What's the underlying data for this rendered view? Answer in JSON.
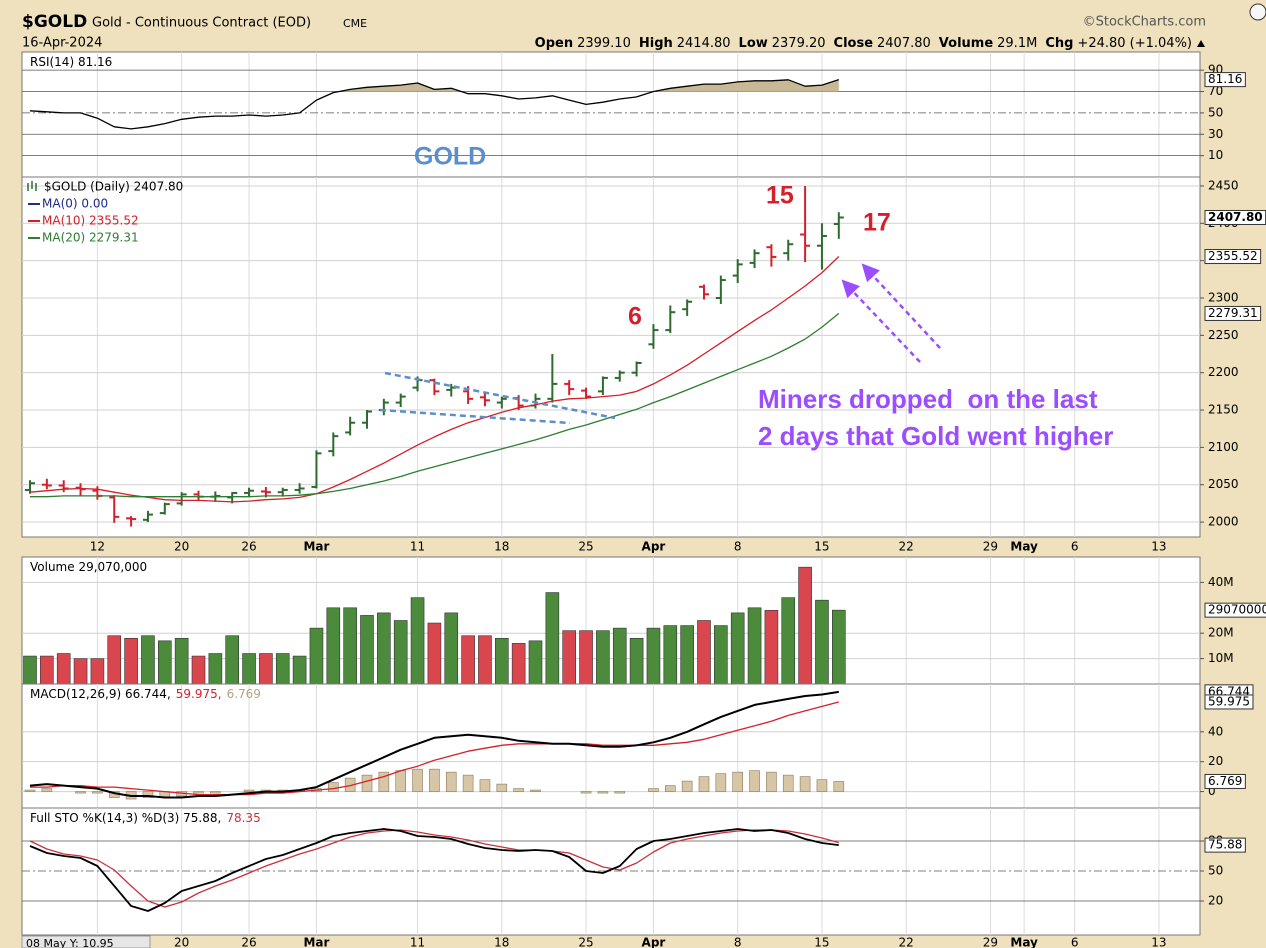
{
  "header": {
    "symbol": "$GOLD",
    "name": "Gold - Continuous Contract (EOD)",
    "exchange": "CME",
    "source": "©StockCharts.com",
    "date": "16-Apr-2024",
    "quote": [
      {
        "label": "Open",
        "value": "2399.10"
      },
      {
        "label": "High",
        "value": "2414.80"
      },
      {
        "label": "Low",
        "value": "2379.20"
      },
      {
        "label": "Close",
        "value": "2407.80"
      },
      {
        "label": "Volume",
        "value": "29.1M"
      },
      {
        "label": "Chg",
        "value": "+24.80 (+1.04%)"
      }
    ],
    "cursor_readout": "08 May Y: 10.95"
  },
  "chart_data": [
    {
      "type": "line",
      "series": [
        {
          "name": "RSI(14) 81.16",
          "color": "#000000",
          "fill": "#c9b896",
          "last_label": "81.16",
          "values": [
            52,
            51,
            50,
            50,
            45,
            37,
            35,
            37,
            40,
            44,
            46,
            47,
            47,
            48,
            47,
            48,
            50,
            62,
            69,
            72,
            74,
            75,
            76,
            78,
            72,
            73,
            68,
            68,
            66,
            63,
            64,
            66,
            62,
            58,
            60,
            63,
            65,
            70,
            73,
            75,
            77,
            77,
            79,
            80,
            80,
            81,
            75,
            76,
            81.16,
            null,
            null,
            null,
            null,
            null,
            null,
            null,
            null,
            null,
            null,
            null,
            null,
            null,
            null,
            null,
            null,
            null,
            null,
            null,
            null,
            null
          ]
        }
      ],
      "ylim": [
        -10,
        107
      ],
      "yticks": [
        90,
        70,
        50,
        30,
        10
      ],
      "annotation": "GOLD"
    },
    {
      "type": "ohlc",
      "title": "$GOLD (Daily) 2407.80",
      "up_color": "#2e6b2e",
      "down_color": "#d4202a",
      "categories": [
        null,
        null,
        null,
        null,
        "12",
        null,
        null,
        null,
        null,
        "20",
        null,
        null,
        null,
        "26",
        null,
        null,
        null,
        "Mar",
        null,
        null,
        null,
        null,
        null,
        "11",
        null,
        null,
        null,
        null,
        "18",
        null,
        null,
        null,
        null,
        "25",
        null,
        null,
        null,
        "Apr",
        null,
        null,
        null,
        null,
        "8",
        null,
        null,
        null,
        null,
        "15",
        null,
        null,
        null,
        null,
        "22",
        null,
        null,
        null,
        null,
        "29",
        null,
        "May",
        null,
        null,
        "6",
        null,
        null,
        null,
        null,
        "13",
        null,
        null
      ],
      "open": [
        2043,
        2050,
        2049,
        2046,
        2042,
        2033,
        2005,
        2003,
        2012,
        2025,
        2037,
        2034,
        2033,
        2039,
        2041,
        2040,
        2043,
        2047,
        2095,
        2120,
        2133,
        2150,
        2160,
        2180,
        2190,
        2177,
        2175,
        2167,
        2160,
        2166,
        2156,
        2165,
        2185,
        2176,
        2175,
        2193,
        2200,
        2238,
        2257,
        2285,
        2315,
        2300,
        2330,
        2347,
        2368,
        2360,
        2385,
        2370,
        2399.1,
        null,
        null,
        null,
        null,
        null,
        null,
        null,
        null,
        null,
        null,
        null,
        null,
        null,
        null,
        null,
        null,
        null,
        null,
        null,
        null,
        null
      ],
      "high": [
        2056,
        2058,
        2056,
        2052,
        2048,
        2036,
        2008,
        2015,
        2026,
        2040,
        2042,
        2041,
        2040,
        2046,
        2047,
        2046,
        2052,
        2096,
        2120,
        2141,
        2150,
        2165,
        2172,
        2195,
        2192,
        2185,
        2182,
        2172,
        2168,
        2170,
        2172,
        2225,
        2190,
        2180,
        2195,
        2203,
        2215,
        2265,
        2290,
        2298,
        2318,
        2330,
        2352,
        2365,
        2372,
        2378,
        2450,
        2400,
        2414.8,
        null,
        null,
        null,
        null,
        null,
        null,
        null,
        null,
        null,
        null,
        null,
        null,
        null,
        null,
        null,
        null,
        null,
        null,
        null,
        null,
        null
      ],
      "low": [
        2038,
        2044,
        2040,
        2035,
        2030,
        1999,
        1994,
        2000,
        2010,
        2022,
        2028,
        2027,
        2025,
        2034,
        2033,
        2034,
        2038,
        2045,
        2088,
        2116,
        2125,
        2143,
        2154,
        2175,
        2170,
        2168,
        2158,
        2155,
        2152,
        2150,
        2152,
        2160,
        2170,
        2165,
        2170,
        2188,
        2195,
        2232,
        2253,
        2276,
        2298,
        2292,
        2320,
        2340,
        2342,
        2350,
        2348,
        2338,
        2379.2,
        null,
        null,
        null,
        null,
        null,
        null,
        null,
        null,
        null,
        null,
        null,
        null,
        null,
        null,
        null,
        null,
        null,
        null,
        null,
        null,
        null
      ],
      "close": [
        2052,
        2049,
        2045,
        2044,
        2035,
        2007,
        2004,
        2010,
        2024,
        2037,
        2034,
        2035,
        2039,
        2042,
        2040,
        2043,
        2045,
        2092,
        2115,
        2133,
        2148,
        2160,
        2168,
        2190,
        2175,
        2180,
        2165,
        2163,
        2165,
        2156,
        2165,
        2185,
        2178,
        2168,
        2193,
        2200,
        2213,
        2257,
        2281,
        2295,
        2305,
        2324,
        2345,
        2360,
        2355,
        2372,
        2370,
        2383,
        2407.8,
        null,
        null,
        null,
        null,
        null,
        null,
        null,
        null,
        null,
        null,
        null,
        null,
        null,
        null,
        null,
        null,
        null,
        null,
        null,
        null,
        null
      ],
      "close_label": "2407.80",
      "series": [
        {
          "name": "MA(0) 0.00",
          "color": "#1f2a8a"
        },
        {
          "name": "MA(10) 2355.52",
          "color": "#d4202a",
          "last_label": "2355.52",
          "values": [
            2040,
            2042,
            2044,
            2045,
            2044,
            2040,
            2036,
            2033,
            2030,
            2029,
            2029,
            2028,
            2027,
            2028,
            2030,
            2031,
            2033,
            2038,
            2047,
            2057,
            2068,
            2079,
            2091,
            2103,
            2114,
            2124,
            2133,
            2140,
            2147,
            2153,
            2157,
            2162,
            2165,
            2166,
            2168,
            2170,
            2175,
            2185,
            2197,
            2210,
            2225,
            2240,
            2255,
            2270,
            2284,
            2300,
            2316,
            2334,
            2355.52,
            null,
            null,
            null,
            null,
            null,
            null,
            null,
            null,
            null,
            null,
            null,
            null,
            null,
            null,
            null,
            null,
            null,
            null,
            null,
            null,
            null
          ]
        },
        {
          "name": "MA(20) 2279.31",
          "color": "#2e7d32",
          "last_label": "2279.31",
          "values": [
            2034,
            2034,
            2035,
            2035,
            2035,
            2035,
            2034,
            2034,
            2034,
            2034,
            2034,
            2034,
            2034,
            2034,
            2035,
            2035,
            2036,
            2038,
            2041,
            2045,
            2050,
            2055,
            2061,
            2068,
            2074,
            2080,
            2086,
            2092,
            2098,
            2104,
            2110,
            2117,
            2124,
            2130,
            2137,
            2144,
            2151,
            2160,
            2168,
            2177,
            2186,
            2195,
            2204,
            2213,
            2222,
            2233,
            2245,
            2261,
            2279.31,
            null,
            null,
            null,
            null,
            null,
            null,
            null,
            null,
            null,
            null,
            null,
            null,
            null,
            null,
            null,
            null,
            null,
            null,
            null,
            null,
            null
          ]
        }
      ],
      "ylim": [
        1980,
        2462
      ],
      "yticks": [
        2000,
        2050,
        2100,
        2150,
        2200,
        2250,
        2300,
        2350,
        2400,
        2450
      ],
      "annotations": [
        "15",
        "17",
        "6",
        "Miners dropped  on the last",
        "2 days that Gold went higher"
      ]
    },
    {
      "type": "bar",
      "up_color": "#4b8b3b",
      "down_color": "#d9464e",
      "series": [
        {
          "name": "Volume 29,070,000",
          "color": "#000000",
          "last_label": "29070000",
          "values": [
            11,
            11,
            12,
            10,
            10,
            19,
            18,
            19,
            17,
            18,
            11,
            12,
            19,
            12,
            12,
            12,
            11,
            22,
            30,
            30,
            27,
            28,
            25,
            34,
            24,
            28,
            19,
            19,
            18,
            16,
            17,
            36,
            21,
            21,
            21,
            22,
            18,
            22,
            23,
            23,
            25,
            23,
            28,
            30,
            29,
            34,
            46,
            33,
            29.07,
            null,
            null,
            null,
            null,
            null,
            null,
            null,
            null,
            null,
            null,
            null,
            null,
            null,
            null,
            null,
            null,
            null,
            null,
            null,
            null,
            null
          ]
        }
      ],
      "ylim": [
        0,
        50
      ],
      "yticks": [
        {
          "value": 10,
          "label": "10M"
        },
        {
          "value": 20,
          "label": "20M"
        },
        {
          "value": 40,
          "label": "40M"
        }
      ]
    },
    {
      "type": "macd",
      "series": [
        {
          "name": "MACD(12,26,9) 66.744,",
          "color": "#000000",
          "last_label": "66.744",
          "values": [
            4,
            5,
            4,
            3,
            2,
            -1,
            -3,
            -3,
            -4,
            -4,
            -3,
            -3,
            -2,
            -1,
            0,
            0,
            1,
            3,
            8,
            13,
            18,
            23,
            28,
            32,
            36,
            37,
            38,
            37,
            36,
            34,
            33,
            32,
            32,
            31,
            30,
            30,
            31,
            33,
            36,
            40,
            45,
            50,
            54,
            58,
            60,
            62,
            64,
            65,
            66.744,
            null,
            null,
            null,
            null,
            null,
            null,
            null,
            null,
            null,
            null,
            null,
            null,
            null,
            null,
            null,
            null,
            null,
            null,
            null,
            null,
            null
          ]
        },
        {
          "name": "59.975,",
          "color": "#d4202a",
          "last_label": "59.975",
          "values": [
            3,
            3,
            4,
            4,
            3,
            3,
            2,
            1,
            0,
            -1,
            -2,
            -2,
            -2,
            -2,
            -1,
            -1,
            0,
            1,
            2,
            4,
            7,
            10,
            14,
            17,
            21,
            24,
            27,
            29,
            31,
            32,
            32,
            32,
            32,
            32,
            31,
            31,
            31,
            31,
            32,
            33,
            35,
            38,
            41,
            44,
            47,
            51,
            54,
            57,
            59.975,
            null,
            null,
            null,
            null,
            null,
            null,
            null,
            null,
            null,
            null,
            null,
            null,
            null,
            null,
            null,
            null,
            null,
            null,
            null,
            null,
            null
          ]
        },
        {
          "name": "6.769",
          "color": "#b7a27e",
          "last_label": "6.769",
          "values": [
            1,
            2,
            0,
            -1,
            -1,
            -4,
            -5,
            -4,
            -4,
            -3,
            -1,
            -1,
            0,
            1,
            1,
            1,
            1,
            2,
            6,
            9,
            11,
            13,
            14,
            15,
            15,
            13,
            11,
            8,
            5,
            2,
            1,
            0,
            0,
            -1,
            -1,
            -1,
            0,
            2,
            4,
            7,
            10,
            12,
            13,
            14,
            13,
            11,
            10,
            8,
            6.769,
            null,
            null,
            null,
            null,
            null,
            null,
            null,
            null,
            null,
            null,
            null,
            null,
            null,
            null,
            null,
            null,
            null,
            null,
            null,
            null,
            null
          ]
        }
      ],
      "ylim": [
        -11,
        72
      ],
      "yticks": [
        0,
        20,
        40
      ]
    },
    {
      "type": "sto",
      "series": [
        {
          "name": "Full STO %K(14,3) %D(3) 75.88,",
          "color": "#000000",
          "last_label": "75.88",
          "values": [
            75,
            68,
            65,
            63,
            55,
            35,
            15,
            10,
            18,
            30,
            35,
            40,
            48,
            55,
            62,
            66,
            72,
            78,
            85,
            88,
            90,
            92,
            90,
            85,
            84,
            82,
            77,
            73,
            71,
            70,
            71,
            70,
            64,
            50,
            48,
            55,
            72,
            80,
            82,
            85,
            88,
            90,
            92,
            90,
            91,
            88,
            82,
            78,
            75.88,
            null,
            null,
            null,
            null,
            null,
            null,
            null,
            null,
            null,
            null,
            null,
            null,
            null,
            null,
            null,
            null,
            null,
            null,
            null,
            null,
            null
          ]
        },
        {
          "name": "78.35",
          "color": "#c8323c",
          "values": [
            80,
            72,
            67,
            65,
            61,
            51,
            35,
            20,
            14,
            19,
            28,
            35,
            41,
            48,
            55,
            61,
            67,
            72,
            78,
            84,
            88,
            90,
            91,
            89,
            86,
            84,
            81,
            77,
            74,
            71,
            71,
            70,
            68,
            61,
            54,
            51,
            58,
            69,
            78,
            82,
            85,
            88,
            90,
            91,
            91,
            90,
            87,
            83,
            78.35,
            null,
            null,
            null,
            null,
            null,
            null,
            null,
            null,
            null,
            null,
            null,
            null,
            null,
            null,
            null,
            null,
            null,
            null,
            null,
            null,
            null
          ]
        }
      ],
      "ylim": [
        -14,
        113
      ],
      "yticks": [
        20,
        50,
        80
      ]
    }
  ]
}
